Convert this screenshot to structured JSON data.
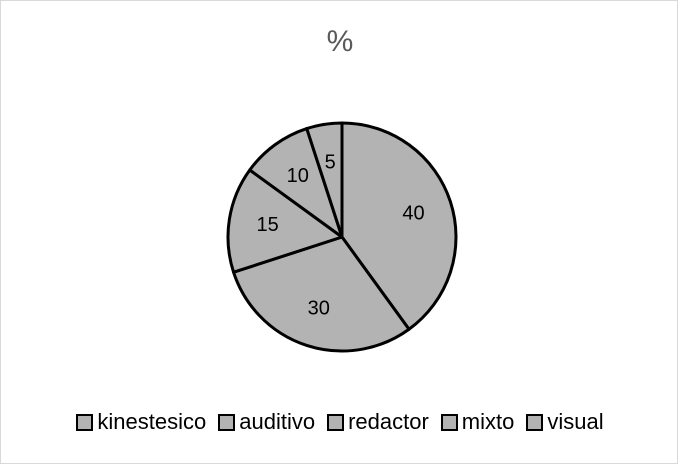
{
  "chart_data": {
    "type": "pie",
    "title": "%",
    "categories": [
      "kinestesico",
      "auditivo",
      "redactor",
      "mixto",
      "visual"
    ],
    "values": [
      40,
      30,
      15,
      10,
      5
    ],
    "slice_fill": "#b3b3b3",
    "slice_stroke": "#000000",
    "legend_position": "bottom"
  }
}
